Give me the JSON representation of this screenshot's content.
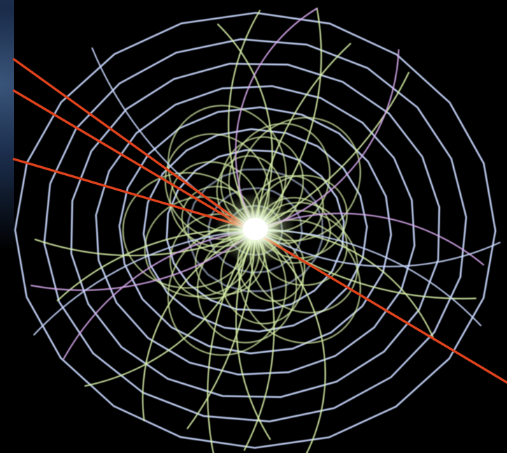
{
  "scene": {
    "subject": "particle-collision-event-display",
    "colors": {
      "background": "#000000",
      "detector_rings": "#c9d8ff",
      "charged_tracks": "#d8f0a8",
      "magenta_tracks": "#d7a8ee",
      "straight_tracks": "#e0421c",
      "vertex_glow": "#ffffff"
    }
  }
}
